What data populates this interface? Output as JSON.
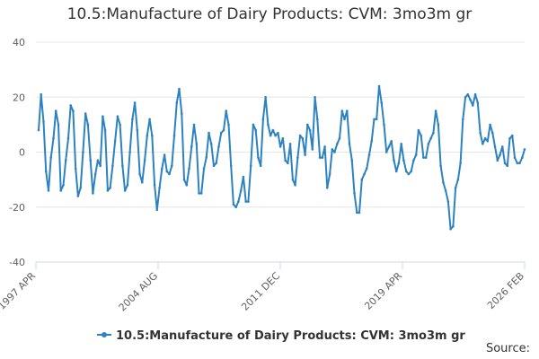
{
  "chart_data": {
    "type": "line",
    "title": "10.5:Manufacture of Dairy Products: CVM: 3mo3m gr",
    "xlabel": "",
    "ylabel": "",
    "ylim": [
      -40,
      40
    ],
    "yticks": [
      40,
      20,
      0,
      -20,
      -40
    ],
    "grid": true,
    "legend_position": "bottom",
    "x_start": "1997 APR",
    "x_end": "2026 FEB",
    "xtick_labels": [
      "1997 APR",
      "2004 AUG",
      "2011 DEC",
      "2019 APR",
      "2026 FEB"
    ],
    "series": [
      {
        "name": "10.5:Manufacture of Dairy Products: CVM: 3mo3m gr",
        "color": "#2d82c1",
        "values": [
          8,
          21,
          11,
          -7,
          -14,
          -2,
          5,
          15,
          10,
          -14,
          -12,
          -3,
          5,
          17,
          15,
          -6,
          -16,
          -13,
          0,
          14,
          10,
          -3,
          -15,
          -8,
          -3,
          -5,
          13,
          8,
          -14,
          -13,
          -5,
          4,
          13,
          10,
          -5,
          -14,
          -12,
          0,
          12,
          18,
          8,
          -8,
          -11,
          -3,
          6,
          12,
          6,
          -12,
          -21,
          -13,
          -6,
          -1,
          -7,
          -8,
          -5,
          6,
          18,
          23,
          14,
          -10,
          -12,
          -6,
          2,
          10,
          3,
          -15,
          -15,
          -6,
          -2,
          7,
          3,
          -5,
          -4,
          2,
          7,
          8,
          15,
          10,
          -5,
          -19,
          -20,
          -18,
          -14,
          -9,
          -18,
          -18,
          -5,
          10,
          8,
          -2,
          -5,
          12,
          20,
          10,
          6,
          8,
          6,
          7,
          2,
          5,
          -3,
          -4,
          3,
          -10,
          -12,
          -2,
          6,
          5,
          -1,
          10,
          8,
          1,
          20,
          12,
          -2,
          -2,
          2,
          -13,
          -8,
          1,
          0,
          3,
          5,
          15,
          12,
          15,
          3,
          -3,
          -15,
          -22,
          -22,
          -10,
          -8,
          -6,
          -1,
          4,
          12,
          12,
          24,
          18,
          10,
          0,
          2,
          4,
          -3,
          -7,
          -4,
          3,
          -3,
          -7,
          -8,
          -7,
          -3,
          -1,
          8,
          6,
          -2,
          -2,
          3,
          5,
          7,
          15,
          10,
          -5,
          -11,
          -14,
          -18,
          -28,
          -27,
          -13,
          -10,
          -4,
          12,
          20,
          21,
          19,
          17,
          21,
          18,
          7,
          3,
          5,
          4,
          10,
          7,
          2,
          -3,
          -1,
          2,
          -4,
          -5,
          5,
          6,
          -2,
          -4,
          -4,
          -2,
          1
        ]
      }
    ]
  },
  "source_label": "Source:"
}
